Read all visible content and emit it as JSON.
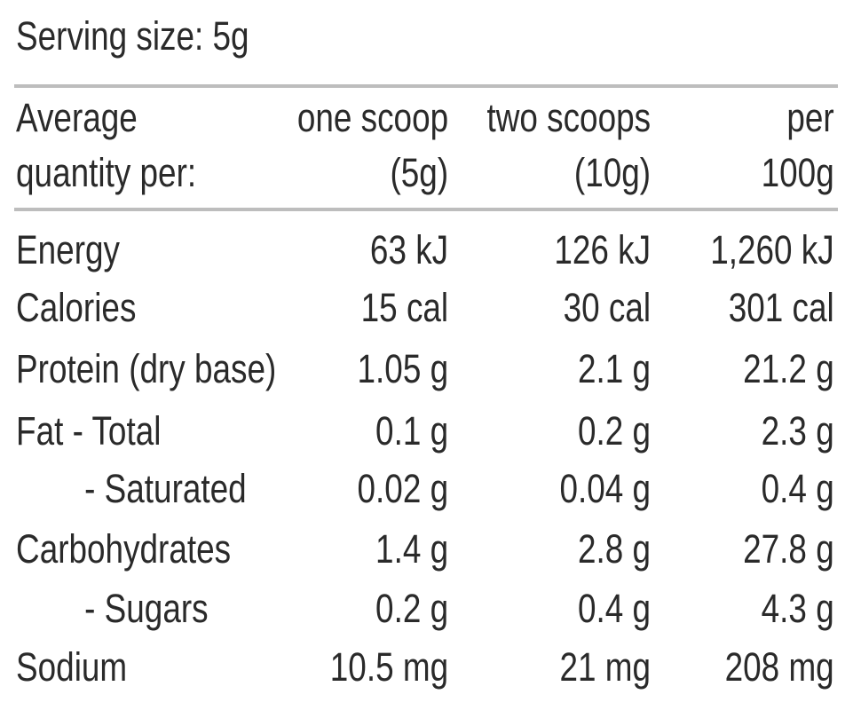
{
  "serving_size": "Serving size: 5g",
  "header": {
    "label": [
      "Average",
      "quantity per:"
    ],
    "col1": [
      "one scoop",
      "(5g)"
    ],
    "col2": [
      "two scoops",
      "(10g)"
    ],
    "col3": [
      "per",
      "100g"
    ]
  },
  "rows": [
    {
      "label": "Energy",
      "v1": "63 kJ",
      "v2": "126 kJ",
      "v3": "1,260 kJ",
      "indent": false
    },
    {
      "label": "Calories",
      "v1": "15 cal",
      "v2": "30 cal",
      "v3": "301 cal",
      "indent": false
    },
    {
      "label": "Protein (dry base)",
      "v1": "1.05 g",
      "v2": "2.1 g",
      "v3": "21.2 g",
      "indent": false
    },
    {
      "label": "Fat  - Total",
      "v1": "0.1 g",
      "v2": "0.2 g",
      "v3": "2.3 g",
      "indent": false
    },
    {
      "label": "- Saturated",
      "v1": "0.02 g",
      "v2": "0.04 g",
      "v3": "0.4 g",
      "indent": true
    },
    {
      "label": "Carbohydrates",
      "v1": "1.4 g",
      "v2": "2.8 g",
      "v3": "27.8 g",
      "indent": false
    },
    {
      "label": "- Sugars",
      "v1": "0.2 g",
      "v2": "0.4 g",
      "v3": "4.3 g",
      "indent": true
    },
    {
      "label": "Sodium",
      "v1": "10.5 mg",
      "v2": "21 mg",
      "v3": "208 mg",
      "indent": false
    }
  ]
}
